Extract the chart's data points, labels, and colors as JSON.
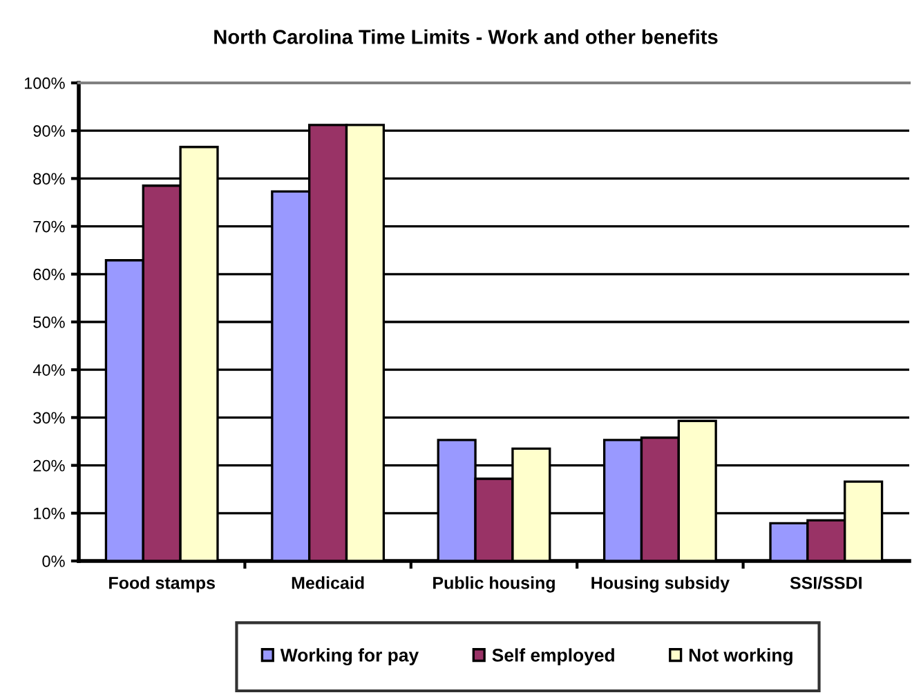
{
  "chart_data": {
    "type": "bar",
    "title": "North Carolina Time Limits - Work and other benefits",
    "categories": [
      "Food stamps",
      "Medicaid",
      "Public housing",
      "Housing subsidy",
      "SSI/SSDI"
    ],
    "series": [
      {
        "name": "Working for pay",
        "color": "#9999ff",
        "values": [
          62.9,
          77.3,
          25.3,
          25.3,
          7.9
        ]
      },
      {
        "name": "Self employed",
        "color": "#993366",
        "values": [
          78.5,
          91.2,
          17.2,
          25.8,
          8.5
        ]
      },
      {
        "name": "Not working",
        "color": "#ffffcc",
        "values": [
          86.6,
          91.2,
          23.5,
          29.3,
          16.6
        ]
      }
    ],
    "ylim": [
      0,
      100
    ],
    "yticks": [
      {
        "value": 0,
        "label": "0%"
      },
      {
        "value": 10,
        "label": "10%"
      },
      {
        "value": 20,
        "label": "20%"
      },
      {
        "value": 30,
        "label": "30%"
      },
      {
        "value": 40,
        "label": "40%"
      },
      {
        "value": 50,
        "label": "50%"
      },
      {
        "value": 60,
        "label": "60%"
      },
      {
        "value": 70,
        "label": "70%"
      },
      {
        "value": 80,
        "label": "80%"
      },
      {
        "value": 90,
        "label": "90%"
      },
      {
        "value": 100,
        "label": "100%"
      }
    ],
    "grid": "y",
    "legend": "bottom"
  }
}
